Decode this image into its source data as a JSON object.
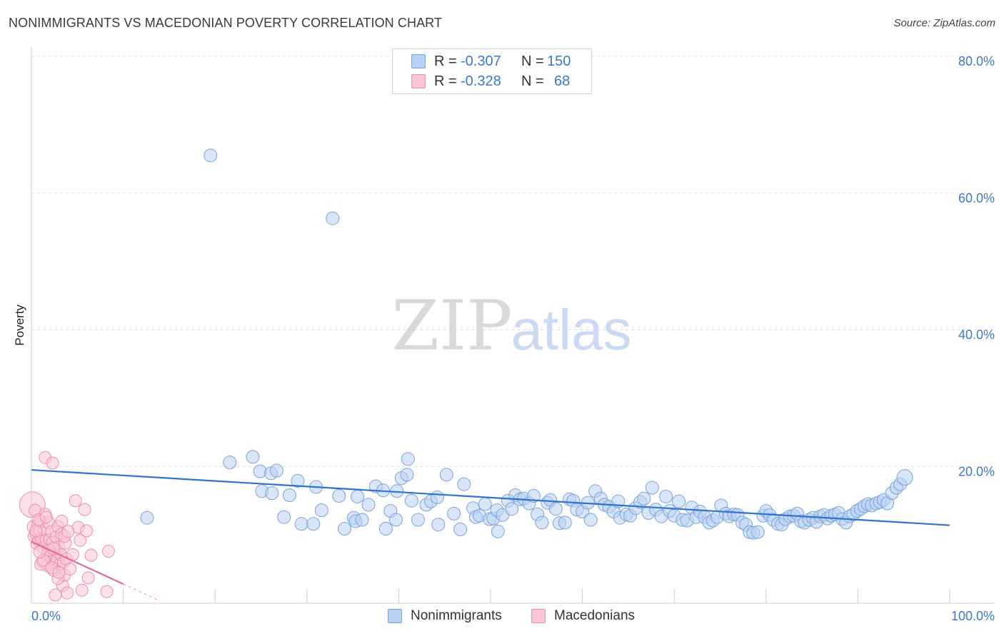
{
  "header": {
    "title": "NONIMMIGRANTS VS MACEDONIAN POVERTY CORRELATION CHART",
    "source": "Source: ZipAtlas.com"
  },
  "watermark": {
    "zip": "ZIP",
    "atlas": "atlas"
  },
  "legend": {
    "r_label": "R =",
    "n_label": "N =",
    "rows": [
      {
        "name": "Nonimmigrants",
        "r": "-0.307",
        "n": "150",
        "color": "#7aa3dc"
      },
      {
        "name": "Macedonians",
        "r": "-0.328",
        "n": "68",
        "color": "#ec8fae"
      }
    ]
  },
  "chart_data": {
    "type": "scatter",
    "title": "NONIMMIGRANTS VS MACEDONIAN POVERTY CORRELATION CHART",
    "xlabel": "",
    "ylabel": "Poverty",
    "xlim": [
      0,
      100
    ],
    "ylim": [
      0,
      80
    ],
    "x_tick_labels": [
      "0.0%",
      "100.0%"
    ],
    "y_ticks": [
      20,
      40,
      60,
      80
    ],
    "y_tick_labels": [
      "20.0%",
      "40.0%",
      "60.0%",
      "80.0%"
    ],
    "grid": true,
    "legend_position": "top-center",
    "series": [
      {
        "name": "Nonimmigrants",
        "color": "#7aa3dc",
        "fill": "#b9d2f3",
        "r": -0.307,
        "n": 150,
        "trend": {
          "x": [
            0,
            100
          ],
          "y": [
            19.5,
            11.4
          ]
        },
        "points": [
          [
            19.5,
            65.5
          ],
          [
            32.8,
            56.3
          ],
          [
            12.6,
            12.5
          ],
          [
            21.6,
            20.6
          ],
          [
            24.1,
            21.4
          ],
          [
            24.9,
            19.3
          ],
          [
            26.1,
            19.0
          ],
          [
            26.7,
            19.4
          ],
          [
            25.1,
            16.4
          ],
          [
            26.2,
            16.1
          ],
          [
            28.1,
            15.8
          ],
          [
            27.5,
            12.6
          ],
          [
            29.4,
            11.6
          ],
          [
            29.0,
            17.9
          ],
          [
            31.0,
            17.0
          ],
          [
            30.7,
            11.6
          ],
          [
            31.6,
            13.6
          ],
          [
            33.5,
            15.7
          ],
          [
            34.1,
            10.9
          ],
          [
            35.1,
            12.5
          ],
          [
            35.3,
            12.0
          ],
          [
            35.5,
            15.6
          ],
          [
            36.0,
            12.2
          ],
          [
            36.7,
            14.4
          ],
          [
            37.5,
            17.1
          ],
          [
            38.3,
            16.5
          ],
          [
            38.6,
            10.9
          ],
          [
            39.1,
            13.5
          ],
          [
            39.7,
            12.2
          ],
          [
            39.8,
            16.4
          ],
          [
            40.3,
            18.3
          ],
          [
            40.9,
            18.8
          ],
          [
            41.0,
            21.1
          ],
          [
            41.4,
            15.0
          ],
          [
            42.1,
            12.2
          ],
          [
            43.0,
            14.4
          ],
          [
            43.5,
            14.9
          ],
          [
            44.2,
            15.5
          ],
          [
            44.3,
            11.5
          ],
          [
            45.2,
            18.8
          ],
          [
            46.0,
            13.1
          ],
          [
            46.7,
            10.8
          ],
          [
            47.1,
            17.4
          ],
          [
            48.1,
            13.9
          ],
          [
            48.4,
            12.6
          ],
          [
            48.8,
            12.8
          ],
          [
            49.4,
            14.5
          ],
          [
            49.9,
            12.3
          ],
          [
            50.3,
            12.4
          ],
          [
            50.7,
            13.6
          ],
          [
            50.8,
            10.5
          ],
          [
            51.3,
            12.9
          ],
          [
            51.9,
            15.0
          ],
          [
            52.3,
            13.8
          ],
          [
            52.7,
            15.8
          ],
          [
            53.2,
            15.2
          ],
          [
            53.6,
            15.3
          ],
          [
            54.2,
            14.6
          ],
          [
            54.7,
            15.7
          ],
          [
            55.1,
            13.0
          ],
          [
            55.6,
            11.8
          ],
          [
            56.2,
            14.7
          ],
          [
            56.5,
            15.1
          ],
          [
            57.1,
            13.8
          ],
          [
            57.5,
            11.7
          ],
          [
            58.1,
            11.8
          ],
          [
            58.6,
            15.2
          ],
          [
            59.0,
            15.0
          ],
          [
            59.4,
            13.7
          ],
          [
            60.0,
            13.4
          ],
          [
            60.6,
            14.7
          ],
          [
            60.9,
            12.2
          ],
          [
            61.4,
            16.4
          ],
          [
            62.0,
            15.3
          ],
          [
            62.4,
            14.4
          ],
          [
            62.9,
            14.1
          ],
          [
            63.4,
            13.4
          ],
          [
            63.9,
            14.9
          ],
          [
            64.1,
            12.5
          ],
          [
            64.8,
            13.0
          ],
          [
            65.2,
            12.8
          ],
          [
            65.8,
            13.9
          ],
          [
            66.3,
            14.8
          ],
          [
            66.7,
            15.3
          ],
          [
            67.2,
            13.2
          ],
          [
            67.6,
            16.9
          ],
          [
            68.0,
            13.7
          ],
          [
            68.6,
            12.7
          ],
          [
            69.1,
            15.6
          ],
          [
            69.5,
            13.5
          ],
          [
            70.0,
            12.8
          ],
          [
            70.5,
            14.9
          ],
          [
            70.9,
            12.2
          ],
          [
            71.4,
            12.1
          ],
          [
            71.9,
            14.0
          ],
          [
            72.4,
            12.6
          ],
          [
            72.8,
            13.4
          ],
          [
            73.3,
            12.6
          ],
          [
            73.8,
            11.8
          ],
          [
            74.2,
            12.1
          ],
          [
            74.7,
            12.6
          ],
          [
            75.1,
            14.3
          ],
          [
            75.6,
            13.1
          ],
          [
            76.0,
            12.7
          ],
          [
            76.5,
            13.0
          ],
          [
            76.9,
            12.9
          ],
          [
            77.4,
            11.8
          ],
          [
            77.8,
            11.5
          ],
          [
            78.2,
            10.4
          ],
          [
            78.6,
            10.3
          ],
          [
            79.1,
            10.4
          ],
          [
            79.7,
            12.8
          ],
          [
            80.0,
            13.5
          ],
          [
            80.4,
            12.9
          ],
          [
            80.8,
            12.2
          ],
          [
            81.3,
            11.6
          ],
          [
            81.7,
            11.5
          ],
          [
            82.1,
            12.3
          ],
          [
            82.6,
            12.7
          ],
          [
            83.0,
            12.8
          ],
          [
            83.4,
            13.1
          ],
          [
            83.8,
            12.0
          ],
          [
            84.2,
            11.8
          ],
          [
            84.7,
            12.2
          ],
          [
            85.1,
            12.5
          ],
          [
            85.5,
            11.9
          ],
          [
            85.9,
            12.7
          ],
          [
            86.3,
            12.9
          ],
          [
            86.7,
            12.4
          ],
          [
            87.1,
            12.8
          ],
          [
            87.5,
            13.0
          ],
          [
            87.9,
            13.2
          ],
          [
            88.3,
            12.3
          ],
          [
            88.7,
            11.8
          ],
          [
            89.1,
            12.7
          ],
          [
            89.5,
            13.0
          ],
          [
            89.9,
            13.5
          ],
          [
            90.3,
            13.8
          ],
          [
            90.7,
            14.2
          ],
          [
            91.1,
            14.5
          ],
          [
            91.5,
            14.3
          ],
          [
            92.0,
            14.6
          ],
          [
            92.4,
            14.8
          ],
          [
            92.8,
            15.1
          ],
          [
            93.2,
            14.6
          ],
          [
            93.7,
            16.1
          ],
          [
            94.2,
            16.9
          ],
          [
            94.6,
            17.4
          ],
          [
            95.1,
            18.4
          ]
        ]
      },
      {
        "name": "Macedonians",
        "color": "#ec8fae",
        "fill": "#f9c6d6",
        "r": -0.328,
        "n": 68,
        "trend": {
          "x": [
            0,
            10
          ],
          "y": [
            9.0,
            2.8
          ]
        },
        "points": [
          [
            0.1,
            14.4
          ],
          [
            0.2,
            11.2
          ],
          [
            0.3,
            9.8
          ],
          [
            0.4,
            13.6
          ],
          [
            0.5,
            10.2
          ],
          [
            0.6,
            8.7
          ],
          [
            0.7,
            11.5
          ],
          [
            0.8,
            9.1
          ],
          [
            0.9,
            10.5
          ],
          [
            1.0,
            12.0
          ],
          [
            1.1,
            9.5
          ],
          [
            1.2,
            6.1
          ],
          [
            1.3,
            8.1
          ],
          [
            1.4,
            10.8
          ],
          [
            1.5,
            13.0
          ],
          [
            1.6,
            9.2
          ],
          [
            1.7,
            5.5
          ],
          [
            1.8,
            7.6
          ],
          [
            1.9,
            11.8
          ],
          [
            2.0,
            9.3
          ],
          [
            2.1,
            6.8
          ],
          [
            2.2,
            10.5
          ],
          [
            2.3,
            8.9
          ],
          [
            2.4,
            4.8
          ],
          [
            2.5,
            7.3
          ],
          [
            2.6,
            5.9
          ],
          [
            2.7,
            9.7
          ],
          [
            2.8,
            6.3
          ],
          [
            2.9,
            11.2
          ],
          [
            3.0,
            8.2
          ],
          [
            3.1,
            5.7
          ],
          [
            3.2,
            7.1
          ],
          [
            3.3,
            10.1
          ],
          [
            3.4,
            2.6
          ],
          [
            3.5,
            6.0
          ],
          [
            3.6,
            4.1
          ],
          [
            3.7,
            8.8
          ],
          [
            3.8,
            6.5
          ],
          [
            1.5,
            21.3
          ],
          [
            2.3,
            20.5
          ],
          [
            0.5,
            10.6
          ],
          [
            0.8,
            12.2
          ],
          [
            1.0,
            5.7
          ],
          [
            1.3,
            6.3
          ],
          [
            1.9,
            7.8
          ],
          [
            2.2,
            5.2
          ],
          [
            2.6,
            1.2
          ],
          [
            2.9,
            3.6
          ],
          [
            3.3,
            12.0
          ],
          [
            3.6,
            9.8
          ],
          [
            3.9,
            1.5
          ],
          [
            4.2,
            5.0
          ],
          [
            4.5,
            7.1
          ],
          [
            4.8,
            15.0
          ],
          [
            5.1,
            11.1
          ],
          [
            5.3,
            9.2
          ],
          [
            5.5,
            1.9
          ],
          [
            5.8,
            13.7
          ],
          [
            6.0,
            10.6
          ],
          [
            6.2,
            3.7
          ],
          [
            6.5,
            7.0
          ],
          [
            8.2,
            1.7
          ],
          [
            8.4,
            7.6
          ],
          [
            0.9,
            7.5
          ],
          [
            1.6,
            12.6
          ],
          [
            2.4,
            8.0
          ],
          [
            3.0,
            4.5
          ],
          [
            4.0,
            10.5
          ]
        ]
      }
    ]
  }
}
